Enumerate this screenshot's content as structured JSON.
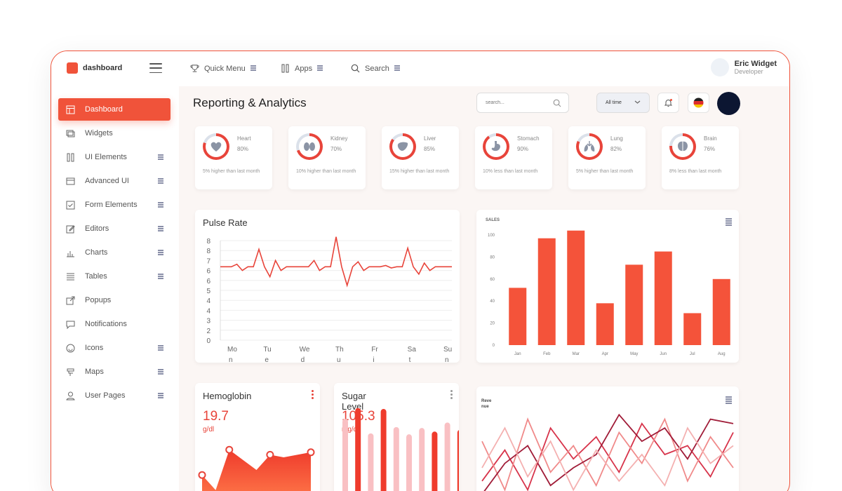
{
  "brand": {
    "name": "dashboard",
    "color": "#f0533a"
  },
  "topnav": [
    {
      "label": "Quick Menu",
      "icon": "trophy-icon"
    },
    {
      "label": "Apps",
      "icon": "apps-icon"
    },
    {
      "label": "Search",
      "icon": "search-icon"
    }
  ],
  "user": {
    "name": "Eric Widget",
    "role": "Developer"
  },
  "sidebar": {
    "items": [
      {
        "label": "Dashboard",
        "icon": "dashboard-icon",
        "active": true
      },
      {
        "label": "Widgets",
        "icon": "widgets-icon"
      },
      {
        "label": "UI Elements",
        "icon": "ui-elements-icon"
      },
      {
        "label": "Advanced UI",
        "icon": "advanced-ui-icon"
      },
      {
        "label": "Form Elements",
        "icon": "form-icon"
      },
      {
        "label": "Editors",
        "icon": "editor-icon"
      },
      {
        "label": "Charts",
        "icon": "chart-icon"
      },
      {
        "label": "Tables",
        "icon": "table-icon"
      },
      {
        "label": "Popups",
        "icon": "popup-icon"
      },
      {
        "label": "Notifications",
        "icon": "notification-icon"
      },
      {
        "label": "Icons",
        "icon": "smile-icon"
      },
      {
        "label": "Maps",
        "icon": "map-icon"
      },
      {
        "label": "User Pages",
        "icon": "user-icon"
      }
    ]
  },
  "header": {
    "title": "Reporting & Analytics",
    "search_placeholder": "search...",
    "period": "All time"
  },
  "organs": [
    {
      "name": "Heart",
      "percent": "80%",
      "value": 80,
      "note": "5% higher than last month",
      "icon": "heart-icon"
    },
    {
      "name": "Kidney",
      "percent": "70%",
      "value": 70,
      "note": "10% higher than last month",
      "icon": "kidney-icon"
    },
    {
      "name": "Liver",
      "percent": "85%",
      "value": 85,
      "note": "15% higher than last month",
      "icon": "liver-icon"
    },
    {
      "name": "Stomach",
      "percent": "90%",
      "value": 90,
      "note": "10% less than last month",
      "icon": "stomach-icon"
    },
    {
      "name": "Lung",
      "percent": "82%",
      "value": 82,
      "note": "5% higher than last month",
      "icon": "lung-icon"
    },
    {
      "name": "Brain",
      "percent": "76%",
      "value": 76,
      "note": "8% less than last month",
      "icon": "brain-icon"
    }
  ],
  "pulse": {
    "title": "Pulse Rate"
  },
  "sales": {
    "title": "SALES"
  },
  "hemoglobin": {
    "title": "Hemoglobin",
    "value": "19.7",
    "unit": "g/dl"
  },
  "sugar": {
    "title_line1": "Sugar",
    "title_line2": "Level",
    "value": "105.3",
    "unit": "mg/dl"
  },
  "revenue": {
    "title_line1": "Reve",
    "title_line2": "nue"
  },
  "chart_data": [
    {
      "type": "line",
      "title": "Pulse Rate",
      "y_ticks": [
        "0",
        "2",
        "3",
        "4",
        "4",
        "5",
        "6",
        "6",
        "7",
        "8",
        "8"
      ],
      "x_ticks": [
        "Mo|n",
        "Tu|e",
        "We|d",
        "Th|u",
        "Fr|i",
        "Sa|t",
        "Su|n"
      ],
      "ylim": [
        0,
        8
      ],
      "grid": true,
      "values": [
        5.9,
        5.9,
        5.9,
        6.1,
        5.6,
        5.9,
        5.9,
        7.3,
        5.9,
        5.1,
        6.4,
        5.6,
        5.9,
        5.9,
        5.9,
        5.9,
        5.9,
        6.4,
        5.6,
        5.9,
        5.9,
        8.3,
        5.9,
        4.4,
        5.9,
        6.3,
        5.6,
        5.9,
        5.9,
        5.9,
        6.0,
        5.8,
        5.9,
        5.9,
        7.4,
        5.9,
        5.3,
        6.2,
        5.6,
        5.9,
        5.9,
        5.9,
        5.9
      ]
    },
    {
      "type": "bar",
      "title": "SALES",
      "categories": [
        "Jan",
        "Feb",
        "Mar",
        "Apr",
        "May",
        "Jun",
        "Jul",
        "Aug"
      ],
      "values": [
        52,
        97,
        104,
        38,
        73,
        85,
        29,
        60
      ],
      "ylim": [
        0,
        100
      ],
      "y_ticks": [
        "0",
        "20",
        "40",
        "60",
        "80",
        "100"
      ],
      "color": "#f4533a"
    },
    {
      "type": "area",
      "title": "Hemoglobin",
      "values": [
        8,
        2,
        18,
        14,
        10,
        16,
        15,
        16,
        17
      ],
      "markers": [
        0,
        2,
        5,
        8
      ]
    },
    {
      "type": "bar",
      "title": "Sugar Level",
      "values": [
        92,
        104,
        76,
        103,
        83,
        75,
        82,
        78,
        88,
        80
      ],
      "colors": [
        "light",
        "red",
        "light",
        "red",
        "light",
        "light",
        "light",
        "red",
        "light",
        "red"
      ]
    },
    {
      "type": "line",
      "title": "Revenue",
      "series": [
        {
          "color": "#d7334a",
          "values": [
            20,
            55,
            10,
            80,
            45,
            70,
            30,
            85,
            50,
            60,
            25,
            75
          ]
        },
        {
          "color": "#f08a8a",
          "values": [
            65,
            10,
            90,
            30,
            60,
            15,
            75,
            40,
            90,
            20,
            70,
            35
          ]
        },
        {
          "color": "#a01c38",
          "values": [
            5,
            40,
            60,
            15,
            35,
            50,
            95,
            65,
            80,
            45,
            90,
            85
          ]
        },
        {
          "color": "#f4b0b0",
          "values": [
            35,
            80,
            25,
            65,
            10,
            55,
            20,
            50,
            15,
            80,
            40,
            60
          ]
        }
      ]
    }
  ]
}
